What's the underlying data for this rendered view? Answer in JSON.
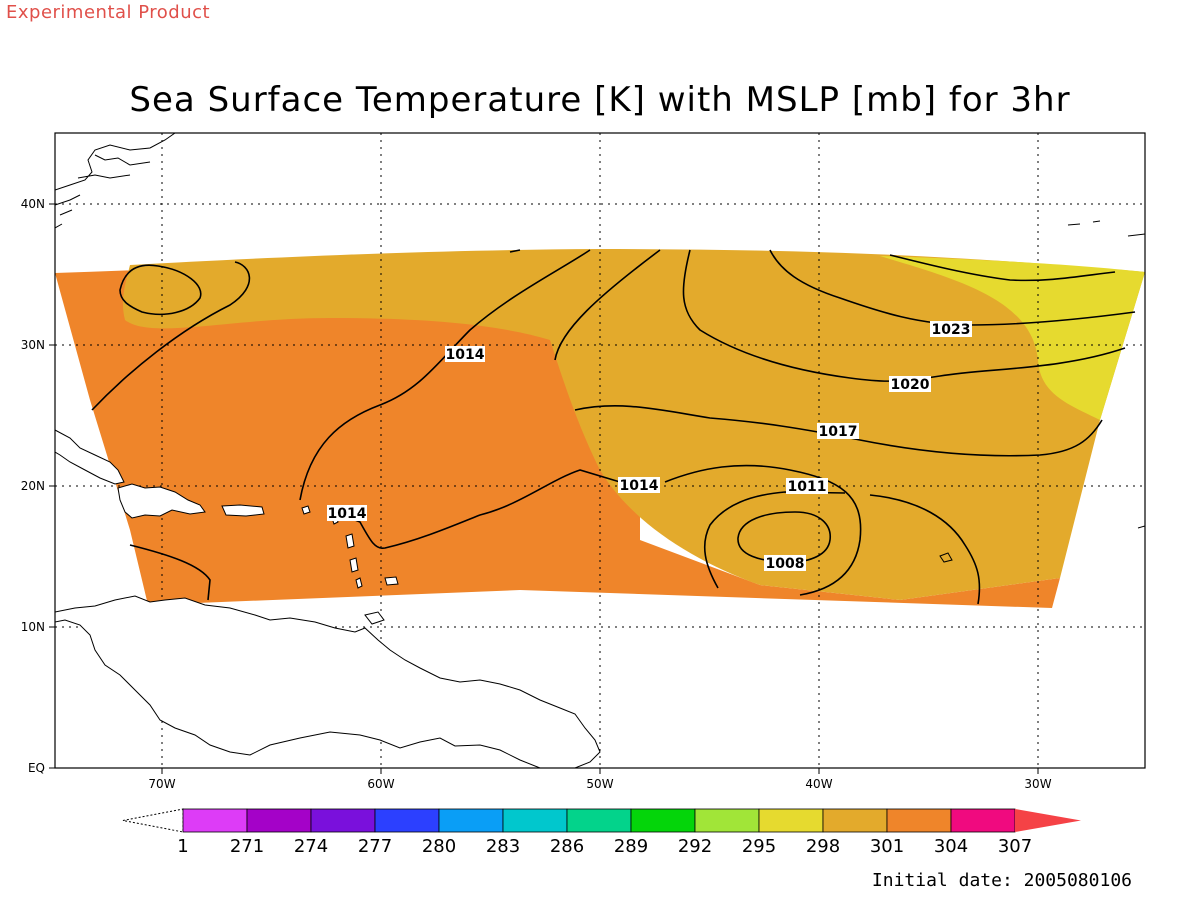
{
  "header": {
    "banner": "Experimental Product",
    "title": "Sea Surface Temperature [K] with MSLP [mb] for 3hr"
  },
  "footer": {
    "initial_date": "Initial date: 2005080106"
  },
  "map": {
    "projection": "latitude-longitude",
    "lon_range": [
      "75W",
      "25W"
    ],
    "lat_range": [
      "EQ",
      "45N"
    ],
    "grid": "dotted",
    "lat_ticks": [
      "EQ",
      "10N",
      "20N",
      "30N",
      "40N"
    ],
    "lon_ticks": [
      "70W",
      "60W",
      "50W",
      "40W",
      "30W"
    ],
    "field_fill": "sea surface temperature",
    "contour_field": "MSLP",
    "contour_labels": [
      "1014",
      "1014",
      "1014",
      "1011",
      "1008",
      "1017",
      "1020",
      "1023"
    ],
    "colors": {
      "sst_298_301": "#e3aa2c",
      "sst_301_304": "#ef852a",
      "sst_295_298": "#e6da2f",
      "coastline": "#000000"
    }
  },
  "colorbar": {
    "labels": [
      "1",
      "271",
      "274",
      "277",
      "280",
      "283",
      "286",
      "289",
      "292",
      "295",
      "298",
      "301",
      "304",
      "307"
    ],
    "colors": [
      "#dd3cf7",
      "#a402c8",
      "#7a10dc",
      "#2c40ff",
      "#0a9ef6",
      "#01c7cd",
      "#03d38b",
      "#04d50a",
      "#a1e538",
      "#e6da2f",
      "#e3aa2c",
      "#ef852a",
      "#f00a7f",
      "#f54246"
    ]
  }
}
